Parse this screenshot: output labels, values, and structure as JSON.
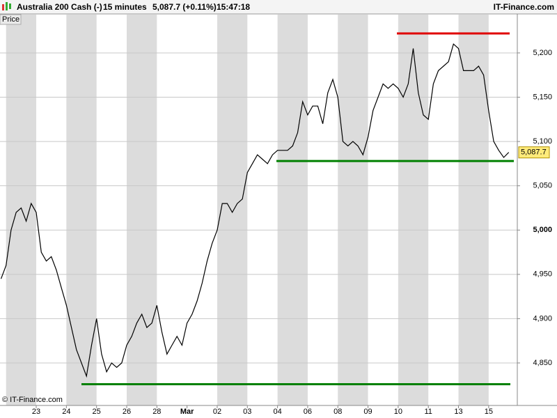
{
  "chart_data": {
    "type": "line",
    "title": "Australia 200 Cash (-)",
    "interval": "15 minutes",
    "last_quote": "5,087.7 (+0.11%)",
    "time": "15:47:18",
    "source": "IT-Finance.com",
    "panel_label": "Price",
    "copyright": "© IT-Finance.com",
    "color": "#000000",
    "categories": [
      null,
      null,
      null,
      null,
      null,
      null,
      null,
      "23",
      null,
      null,
      null,
      null,
      null,
      "24",
      null,
      null,
      null,
      null,
      null,
      "25",
      null,
      null,
      null,
      null,
      null,
      "26",
      null,
      null,
      null,
      null,
      null,
      "28",
      null,
      null,
      null,
      null,
      null,
      "Mar",
      null,
      null,
      null,
      null,
      null,
      "02",
      null,
      null,
      null,
      null,
      null,
      "03",
      null,
      null,
      null,
      null,
      null,
      "04",
      null,
      null,
      null,
      null,
      null,
      "06",
      null,
      null,
      null,
      null,
      null,
      "08",
      null,
      null,
      null,
      null,
      null,
      "09",
      null,
      null,
      null,
      null,
      null,
      "10",
      null,
      null,
      null,
      null,
      null,
      "11",
      null,
      null,
      null,
      null,
      null,
      "13",
      null,
      null,
      null,
      null,
      null,
      "15",
      null,
      null,
      null,
      null
    ],
    "values": [
      4945,
      4960,
      5000,
      5020,
      5025,
      5010,
      5030,
      5020,
      4975,
      4965,
      4970,
      4955,
      4935,
      4915,
      4890,
      4865,
      4850,
      4835,
      4870,
      4900,
      4860,
      4840,
      4850,
      4845,
      4850,
      4870,
      4880,
      4895,
      4905,
      4890,
      4895,
      4915,
      4885,
      4860,
      4870,
      4880,
      4870,
      4895,
      4905,
      4920,
      4940,
      4965,
      4985,
      5000,
      5030,
      5030,
      5020,
      5030,
      5035,
      5065,
      5075,
      5085,
      5080,
      5075,
      5085,
      5090,
      5090,
      5090,
      5095,
      5110,
      5145,
      5130,
      5140,
      5140,
      5120,
      5155,
      5170,
      5150,
      5100,
      5095,
      5100,
      5095,
      5085,
      5105,
      5135,
      5150,
      5165,
      5160,
      5165,
      5160,
      5150,
      5165,
      5205,
      5155,
      5130,
      5125,
      5165,
      5180,
      5185,
      5190,
      5210,
      5205,
      5180,
      5180,
      5180,
      5185,
      5175,
      5135,
      5100,
      5090,
      5082,
      5087.7
    ],
    "last_price": {
      "value": 5087.7,
      "label": "5,087.7"
    },
    "levels": [
      {
        "value": 5222,
        "color": "#e00000"
      },
      {
        "value": 5078,
        "color": "#008000"
      },
      {
        "value": 4826,
        "color": "#008000"
      }
    ],
    "ylim": [
      4802,
      5244
    ],
    "yticks": [
      {
        "value": 4850,
        "label": "4,850"
      },
      {
        "value": 4900,
        "label": "4,900"
      },
      {
        "value": 4950,
        "label": "4,950"
      },
      {
        "value": 5000,
        "label": "5,000"
      },
      {
        "value": 5050,
        "label": "5,050"
      },
      {
        "value": 5100,
        "label": "5,100"
      },
      {
        "value": 5150,
        "label": "5,150"
      },
      {
        "value": 5200,
        "label": "5,200"
      }
    ],
    "grid": true
  }
}
